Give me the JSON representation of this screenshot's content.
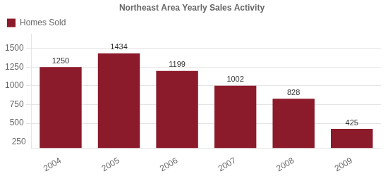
{
  "chart_data": {
    "type": "bar",
    "title": "Northeast Area Yearly Sales Activity",
    "categories": [
      "2004",
      "2005",
      "2006",
      "2007",
      "2008",
      "2009"
    ],
    "series": [
      {
        "name": "Homes Sold",
        "color": "#8B1A2A",
        "values": [
          1250,
          1434,
          1199,
          1002,
          828,
          425
        ]
      }
    ],
    "ylim": [
      170,
      1690
    ],
    "yticks": [
      500,
      750,
      1000,
      1250,
      1500
    ],
    "grid": true,
    "legend": "upper left",
    "data_labels": true,
    "annotations": [
      {
        "text": "250",
        "y": 250
      }
    ]
  }
}
